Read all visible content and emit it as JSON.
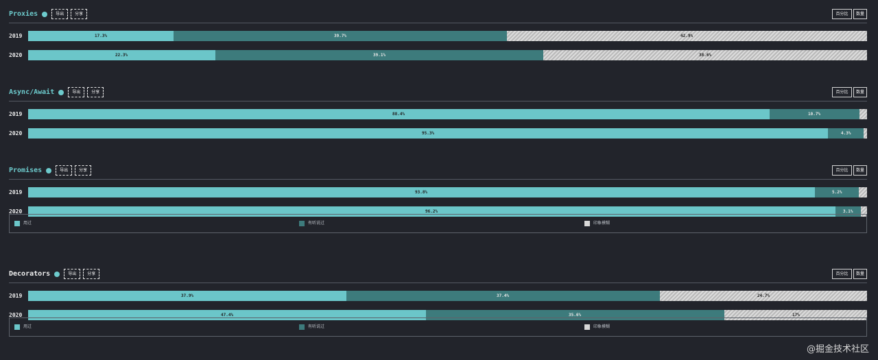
{
  "labels": {
    "export": "导出",
    "share": "分享",
    "percent": "百分比",
    "count": "数量"
  },
  "legend": [
    {
      "label": "用过",
      "color": "#6bc6c9"
    },
    {
      "label": "有听说过",
      "color": "#3d7b7c"
    },
    {
      "label": "印象模糊",
      "color": "#d8d8d8"
    }
  ],
  "chart_data": [
    {
      "type": "bar",
      "stacked": true,
      "orientation": "horizontal",
      "title": "Proxies",
      "categories": [
        "2019",
        "2020"
      ],
      "series": [
        {
          "name": "用过",
          "values": [
            17.3,
            22.3
          ],
          "labels": [
            "17.3%",
            "22.3%"
          ]
        },
        {
          "name": "有听说过",
          "values": [
            39.7,
            39.1
          ],
          "labels": [
            "39.7%",
            "39.1%"
          ]
        },
        {
          "name": "印象模糊",
          "values": [
            42.9,
            38.6
          ],
          "labels": [
            "42.9%",
            "38.6%"
          ]
        }
      ],
      "show_legend": false
    },
    {
      "type": "bar",
      "stacked": true,
      "orientation": "horizontal",
      "title": "Async/Await",
      "categories": [
        "2019",
        "2020"
      ],
      "series": [
        {
          "name": "用过",
          "values": [
            88.4,
            95.3
          ],
          "labels": [
            "88.4%",
            "95.3%"
          ]
        },
        {
          "name": "有听说过",
          "values": [
            10.7,
            4.3
          ],
          "labels": [
            "10.7%",
            "4.3%"
          ]
        },
        {
          "name": "印象模糊",
          "values": [
            0.9,
            0.4
          ],
          "labels": [
            "",
            ""
          ]
        }
      ],
      "show_legend": false
    },
    {
      "type": "bar",
      "stacked": true,
      "orientation": "horizontal",
      "title": "Promises",
      "categories": [
        "2019",
        "2020"
      ],
      "series": [
        {
          "name": "用过",
          "values": [
            93.8,
            96.2
          ],
          "labels": [
            "93.8%",
            "96.2%"
          ]
        },
        {
          "name": "有听说过",
          "values": [
            5.2,
            3.1
          ],
          "labels": [
            "5.2%",
            "3.1%"
          ]
        },
        {
          "name": "印象模糊",
          "values": [
            1.0,
            0.7
          ],
          "labels": [
            "",
            ""
          ]
        }
      ],
      "show_legend": true
    },
    {
      "type": "bar",
      "stacked": true,
      "orientation": "horizontal",
      "title": "Decorators",
      "categories": [
        "2019",
        "2020"
      ],
      "series": [
        {
          "name": "用过",
          "values": [
            37.9,
            47.4
          ],
          "labels": [
            "37.9%",
            "47.4%"
          ]
        },
        {
          "name": "有听说过",
          "values": [
            37.4,
            35.6
          ],
          "labels": [
            "37.4%",
            "35.6%"
          ]
        },
        {
          "name": "印象模糊",
          "values": [
            24.7,
            17.0
          ],
          "labels": [
            "24.7%",
            "17%"
          ]
        }
      ],
      "show_legend": true
    }
  ],
  "watermark": "@掘金技术社区"
}
